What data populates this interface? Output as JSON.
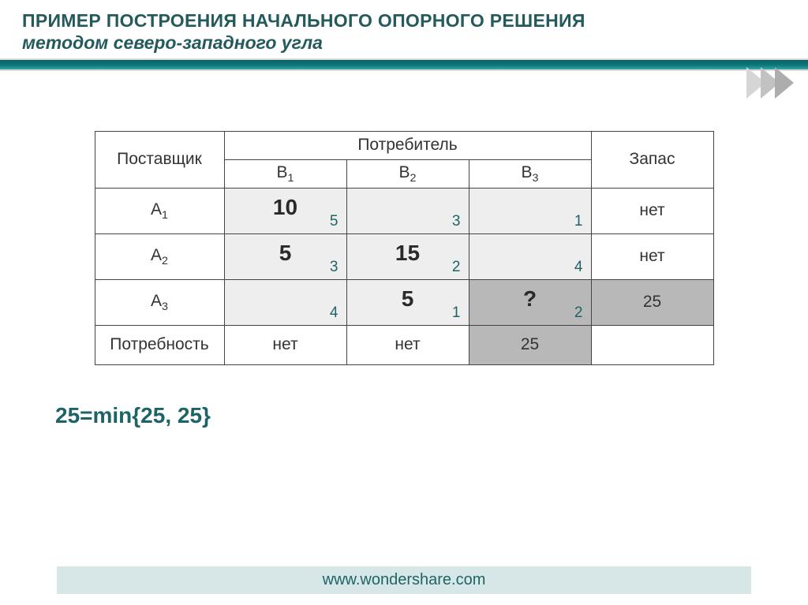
{
  "header": {
    "title": "ПРИМЕР ПОСТРОЕНИЯ НАЧАЛЬНОГО ОПОРНОГО РЕШЕНИЯ",
    "subtitle": "методом северо-западного угла"
  },
  "table": {
    "supplier_label": "Поставщик",
    "consumer_label": "Потребитель",
    "stock_label": "Запас",
    "demand_label": "Потребность",
    "consumers": [
      "B",
      "B",
      "B"
    ],
    "consumer_subs": [
      "1",
      "2",
      "3"
    ],
    "suppliers": [
      "A",
      "A",
      "A"
    ],
    "supplier_subs": [
      "1",
      "2",
      "3"
    ],
    "cells": [
      [
        {
          "val": "10",
          "cost": "5",
          "dark": false
        },
        {
          "val": "",
          "cost": "3",
          "dark": false
        },
        {
          "val": "",
          "cost": "1",
          "dark": false
        }
      ],
      [
        {
          "val": "5",
          "cost": "3",
          "dark": false
        },
        {
          "val": "15",
          "cost": "2",
          "dark": false
        },
        {
          "val": "",
          "cost": "4",
          "dark": false
        }
      ],
      [
        {
          "val": "",
          "cost": "4",
          "dark": false
        },
        {
          "val": "5",
          "cost": "1",
          "dark": false
        },
        {
          "val": "?",
          "cost": "2",
          "dark": true
        }
      ]
    ],
    "stock": [
      {
        "text": "нет",
        "dark": false
      },
      {
        "text": "нет",
        "dark": false
      },
      {
        "text": "25",
        "dark": true
      }
    ],
    "demand": [
      {
        "text": "нет",
        "dark": false
      },
      {
        "text": "нет",
        "dark": false
      },
      {
        "text": "25",
        "dark": true
      }
    ]
  },
  "formula": "25=min{25, 25}",
  "footer": "www.wondershare.com",
  "chevron_colors": [
    "#d6d6d6",
    "#c2c2c2",
    "#adadad"
  ]
}
